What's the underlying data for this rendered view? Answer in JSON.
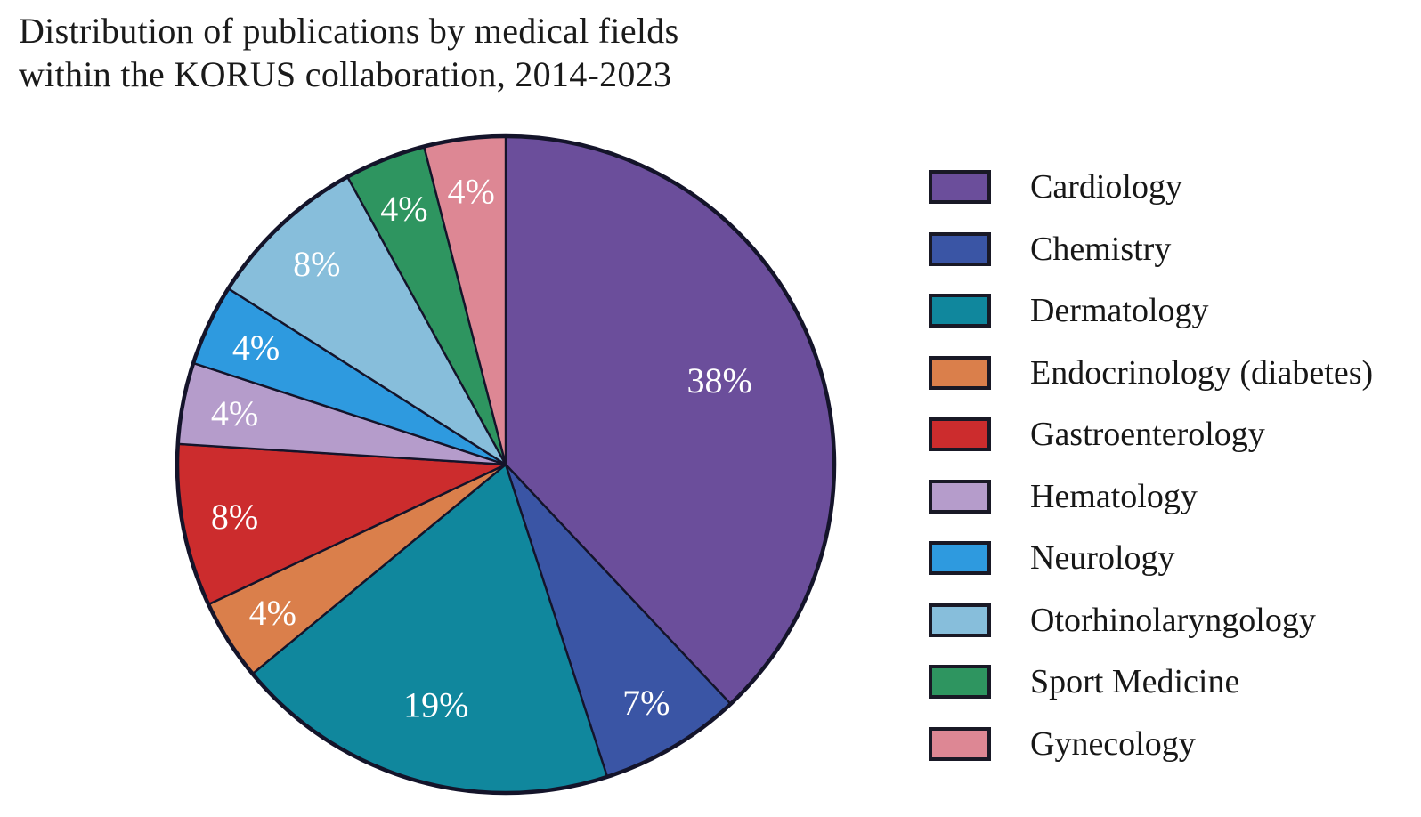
{
  "title": {
    "line1": "Distribution of publications by medical fields",
    "line2": "within the KORUS collaboration, 2014-2023"
  },
  "chart_data": {
    "type": "pie",
    "title": "Distribution of publications by medical fields within the KORUS collaboration, 2014-2023",
    "start_angle_deg": 0,
    "direction": "clockwise",
    "legend_position": "right",
    "data_label_color": "#ffffff",
    "outline_color": "#14142a",
    "slices": [
      {
        "label": "Cardiology",
        "value_pct": 38,
        "data_label": "38%",
        "color": "#6B4E9B"
      },
      {
        "label": "Chemistry",
        "value_pct": 7,
        "data_label": "7%",
        "color": "#3A55A5"
      },
      {
        "label": "Dermatology",
        "value_pct": 19,
        "data_label": "19%",
        "color": "#10879D"
      },
      {
        "label": "Endocrinology (diabetes)",
        "value_pct": 4,
        "data_label": "4%",
        "color": "#DA7F4B"
      },
      {
        "label": "Gastroenterology",
        "value_pct": 8,
        "data_label": "8%",
        "color": "#CC2C2D"
      },
      {
        "label": "Hematology",
        "value_pct": 4,
        "data_label": "4%",
        "color": "#B59CCB"
      },
      {
        "label": "Neurology",
        "value_pct": 4,
        "data_label": "4%",
        "color": "#2E9ADF"
      },
      {
        "label": "Otorhinolaryngology",
        "value_pct": 8,
        "data_label": "8%",
        "color": "#87BEDB"
      },
      {
        "label": "Sport Medicine",
        "value_pct": 4,
        "data_label": "4%",
        "color": "#2E9560"
      },
      {
        "label": "Gynecology",
        "value_pct": 4,
        "data_label": "4%",
        "color": "#DD8794"
      }
    ]
  }
}
